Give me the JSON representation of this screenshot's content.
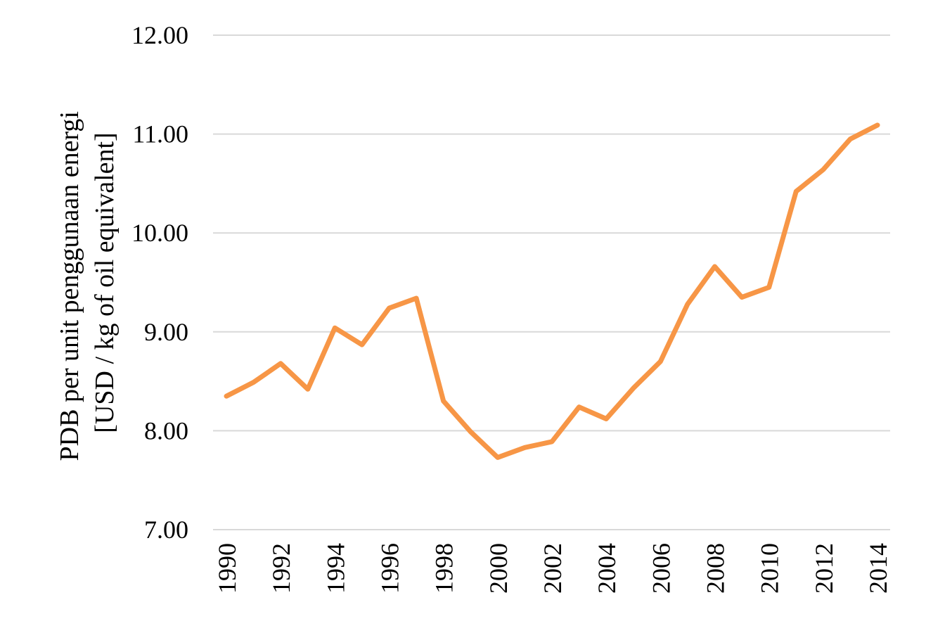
{
  "chart_data": {
    "type": "line",
    "title": "",
    "xlabel": "",
    "ylabel_lines": [
      "PDB per unit penggunaan energi",
      "[USD / kg of oil equivalent]"
    ],
    "x": [
      1990,
      1991,
      1992,
      1993,
      1994,
      1995,
      1996,
      1997,
      1998,
      1999,
      2000,
      2001,
      2002,
      2003,
      2004,
      2005,
      2006,
      2007,
      2008,
      2009,
      2010,
      2011,
      2012,
      2013,
      2014
    ],
    "x_tick_labels": [
      "1990",
      "1992",
      "1994",
      "1996",
      "1998",
      "2000",
      "2002",
      "2004",
      "2006",
      "2008",
      "2010",
      "2012",
      "2014"
    ],
    "y_tick_labels": [
      "7.00",
      "8.00",
      "9.00",
      "10.00",
      "11.00",
      "12.00"
    ],
    "ylim": [
      7,
      12
    ],
    "grid": true,
    "legend": "none",
    "series": [
      {
        "color": "#f79646",
        "values": [
          8.35,
          8.49,
          8.68,
          8.42,
          9.04,
          8.87,
          9.24,
          9.34,
          8.3,
          7.99,
          7.73,
          7.83,
          7.89,
          8.24,
          8.12,
          8.43,
          8.7,
          9.28,
          9.66,
          9.35,
          9.45,
          10.42,
          10.64,
          10.95,
          11.09
        ]
      }
    ]
  }
}
